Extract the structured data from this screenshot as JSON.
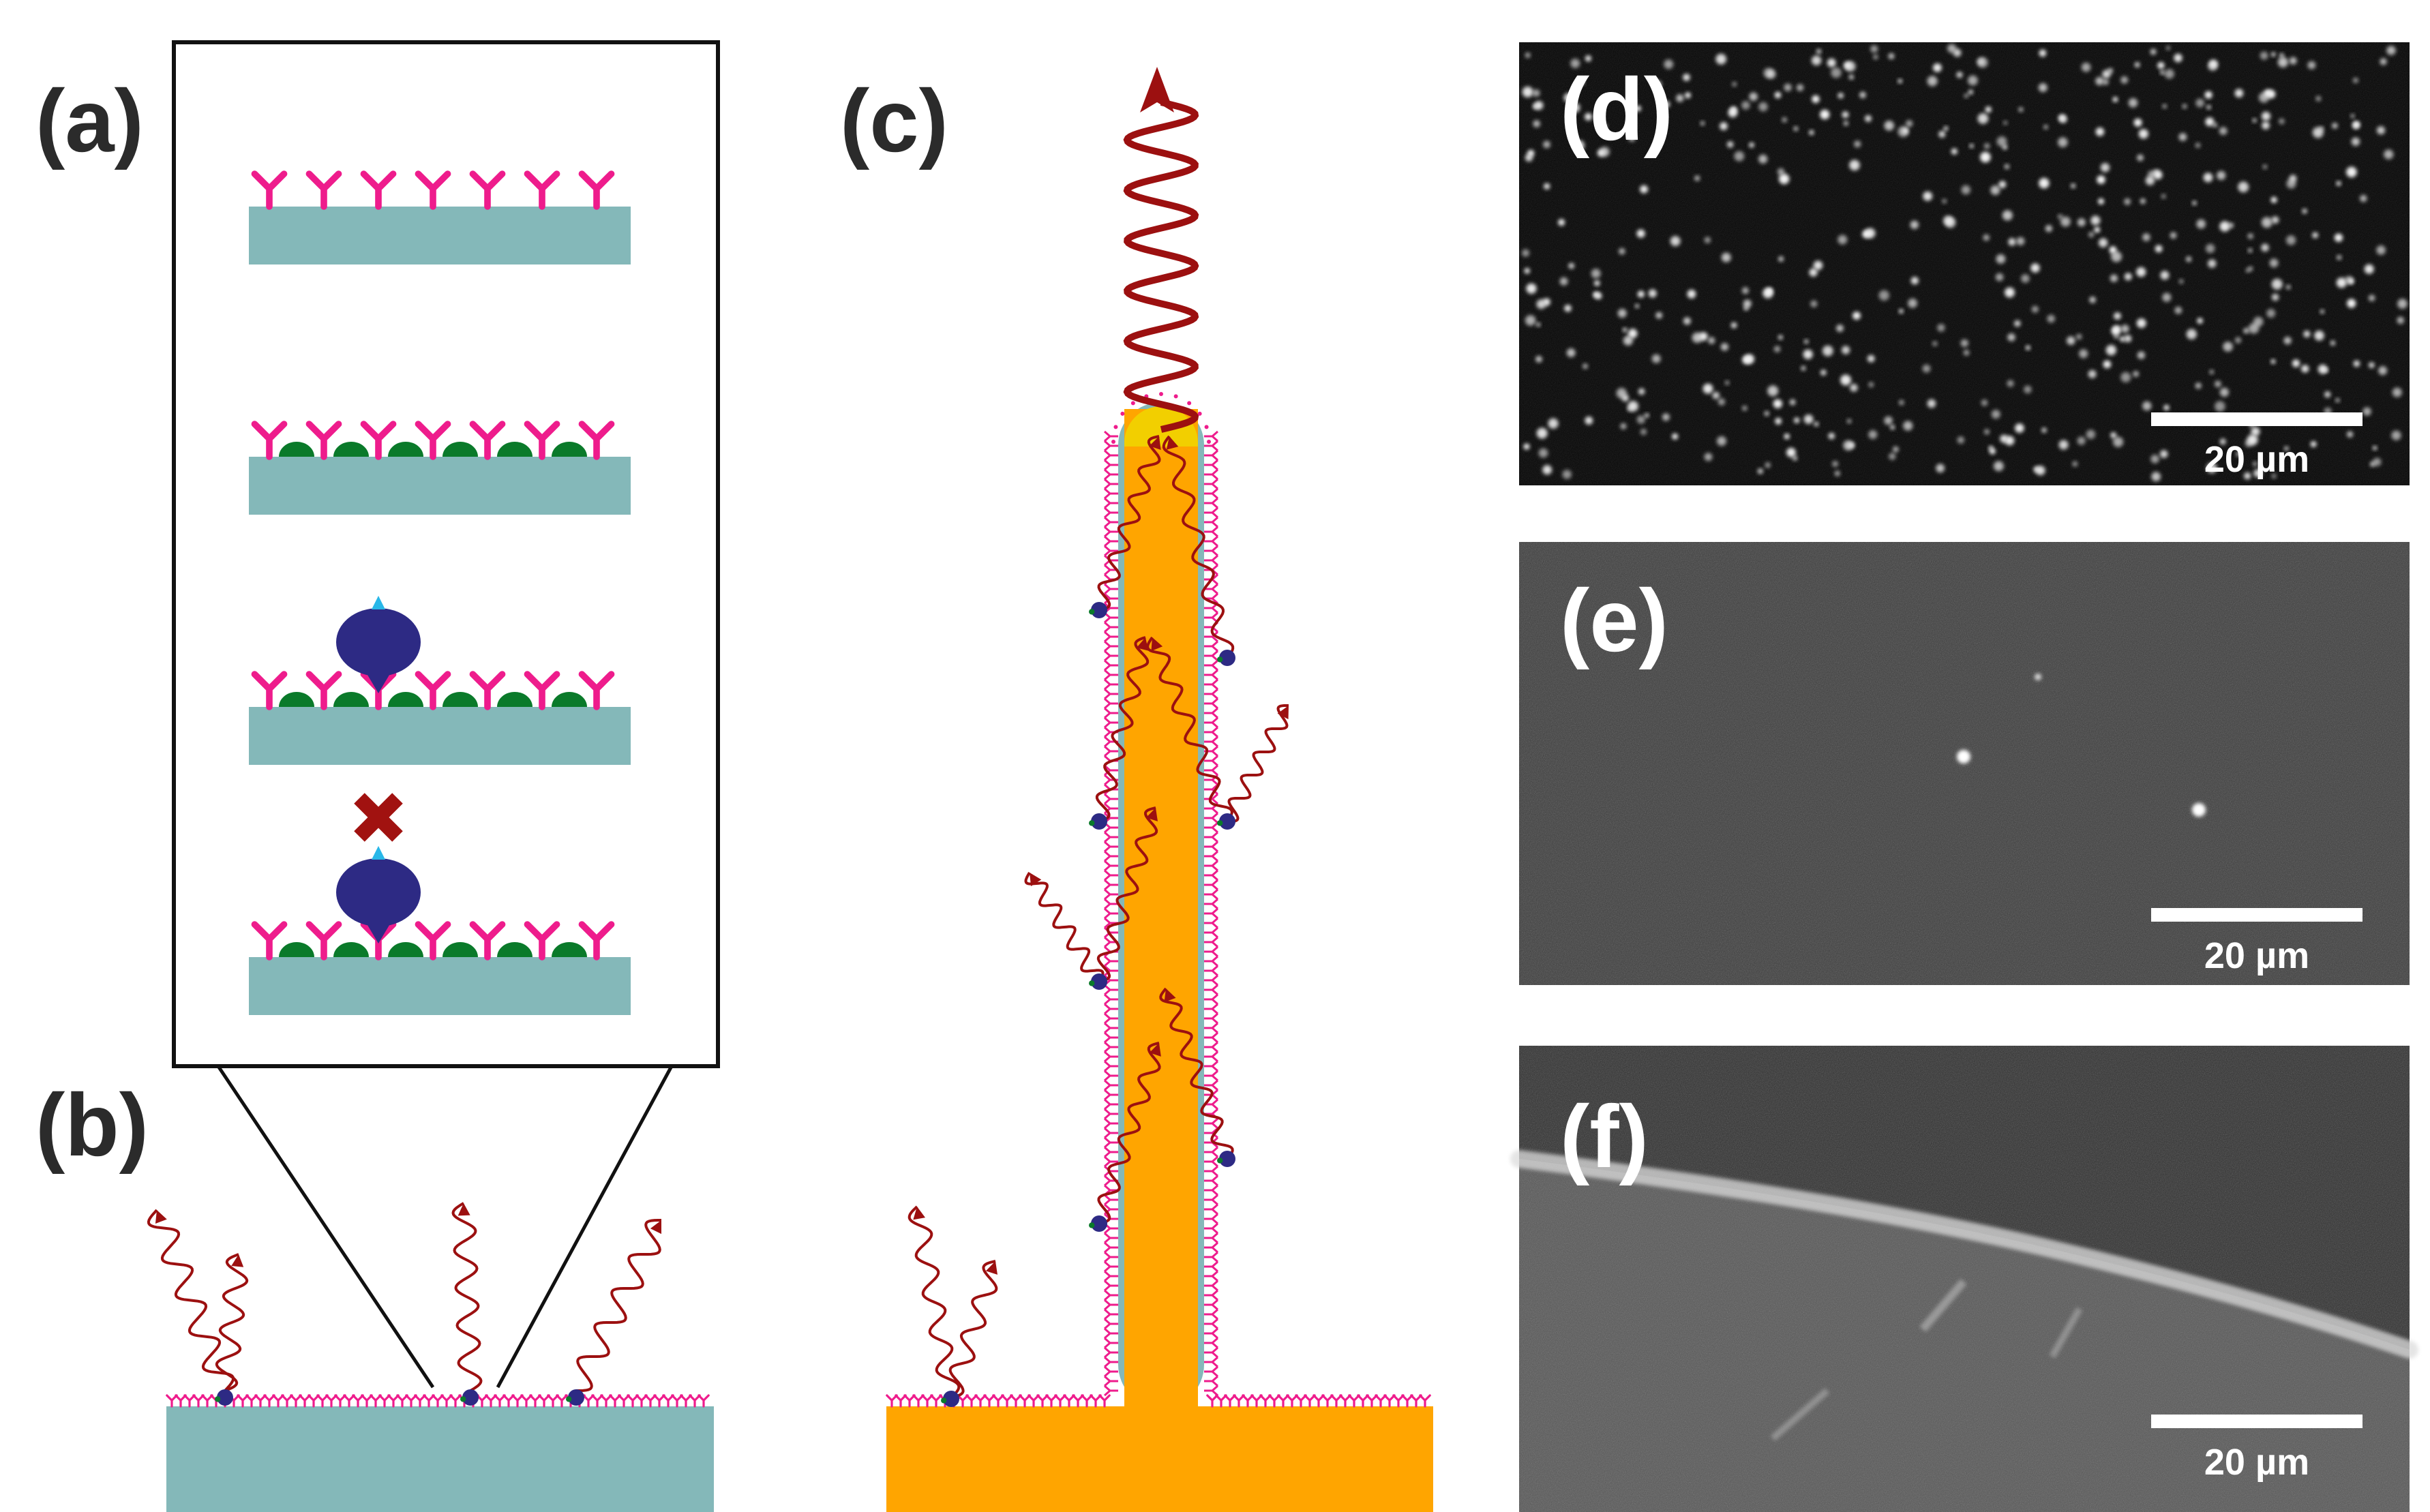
{
  "panels": {
    "a": {
      "label": "(a)"
    },
    "b": {
      "label": "(b)"
    },
    "c": {
      "label": "(c)"
    },
    "d": {
      "label": "(d)",
      "scalebar": "20 µm"
    },
    "e": {
      "label": "(e)",
      "scalebar": "20 µm"
    },
    "f": {
      "label": "(f)",
      "scalebar": "20 µm"
    }
  },
  "colors": {
    "substrate_glass": "#84b8b9",
    "fiber_gold": "#ffa500",
    "fiber_tip": "#f2cf00",
    "antibody": "#ee1c8c",
    "blocking_protein": "#0a7a2a",
    "analyte": "#2d2a84",
    "analyte_tag": "#28b7e8",
    "label_dye": "#a11210",
    "emission_wave": "#9c1010",
    "outline": "#111111"
  },
  "icons": [
    "antibody-icon",
    "blocking-protein-icon",
    "analyte-icon",
    "fluorophore-icon",
    "emission-wave-icon"
  ]
}
